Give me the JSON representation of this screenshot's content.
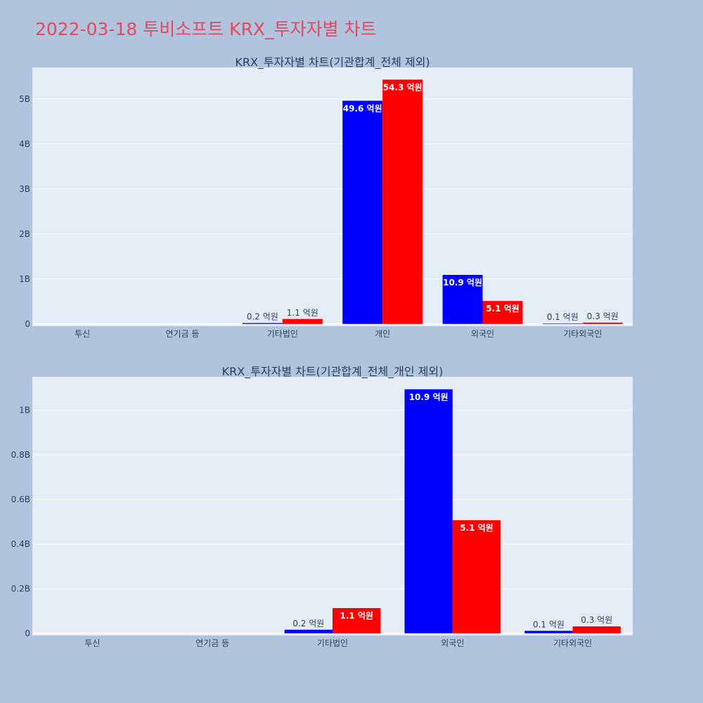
{
  "page": {
    "title": "2022-03-18 투비소프트 KRX_투자자별 차트",
    "background": "#b0c4de",
    "title_color": "#e8475d"
  },
  "chart_data": [
    {
      "type": "bar",
      "title": "KRX_투자자별 차트(기관합계_전체 제외)",
      "categories": [
        "투신",
        "연기금 등",
        "기타법인",
        "개인",
        "외국인",
        "기타외국인"
      ],
      "series": [
        {
          "color": "#0000ff",
          "values": [
            0,
            0,
            20000000,
            4960000000,
            1090000000,
            10000000
          ],
          "labels": [
            "",
            "",
            "0.2 억원",
            "49.6 억원",
            "10.9 억원",
            "0.1 억원"
          ]
        },
        {
          "color": "#ff0000",
          "values": [
            0,
            0,
            110000000,
            5430000000,
            510000000,
            30000000
          ],
          "labels": [
            "",
            "",
            "1.1 억원",
            "54.3 억원",
            "5.1 억원",
            "0.3 억원"
          ]
        }
      ],
      "y_ticks": [
        0,
        1000000000,
        2000000000,
        3000000000,
        4000000000,
        5000000000
      ],
      "y_tick_labels": [
        "0",
        "1B",
        "2B",
        "3B",
        "4B",
        "5B"
      ],
      "ylim": [
        -50000000,
        5700000000
      ],
      "plot_background": "#e5ecf6",
      "grid": true
    },
    {
      "type": "bar",
      "title": "KRX_투자자별 차트(기관합계_전체_개인 제외)",
      "categories": [
        "투신",
        "연기금 등",
        "기타법인",
        "외국인",
        "기타외국인"
      ],
      "series": [
        {
          "color": "#0000ff",
          "values": [
            0,
            0,
            16000000,
            1094000000,
            11000000
          ],
          "labels": [
            "",
            "",
            "0.2 억원",
            "10.9 억원",
            "0.1 억원"
          ]
        },
        {
          "color": "#ff0000",
          "values": [
            0,
            0,
            113000000,
            507000000,
            31000000
          ],
          "labels": [
            "",
            "",
            "1.1 억원",
            "5.1 억원",
            "0.3 억원"
          ]
        }
      ],
      "y_ticks": [
        0,
        200000000,
        400000000,
        600000000,
        800000000,
        1000000000
      ],
      "y_tick_labels": [
        "0",
        "0.2B",
        "0.4B",
        "0.6B",
        "0.8B",
        "1B"
      ],
      "ylim": [
        -10000000,
        1150000000
      ],
      "plot_background": "#e5ecf6",
      "grid": true
    }
  ]
}
